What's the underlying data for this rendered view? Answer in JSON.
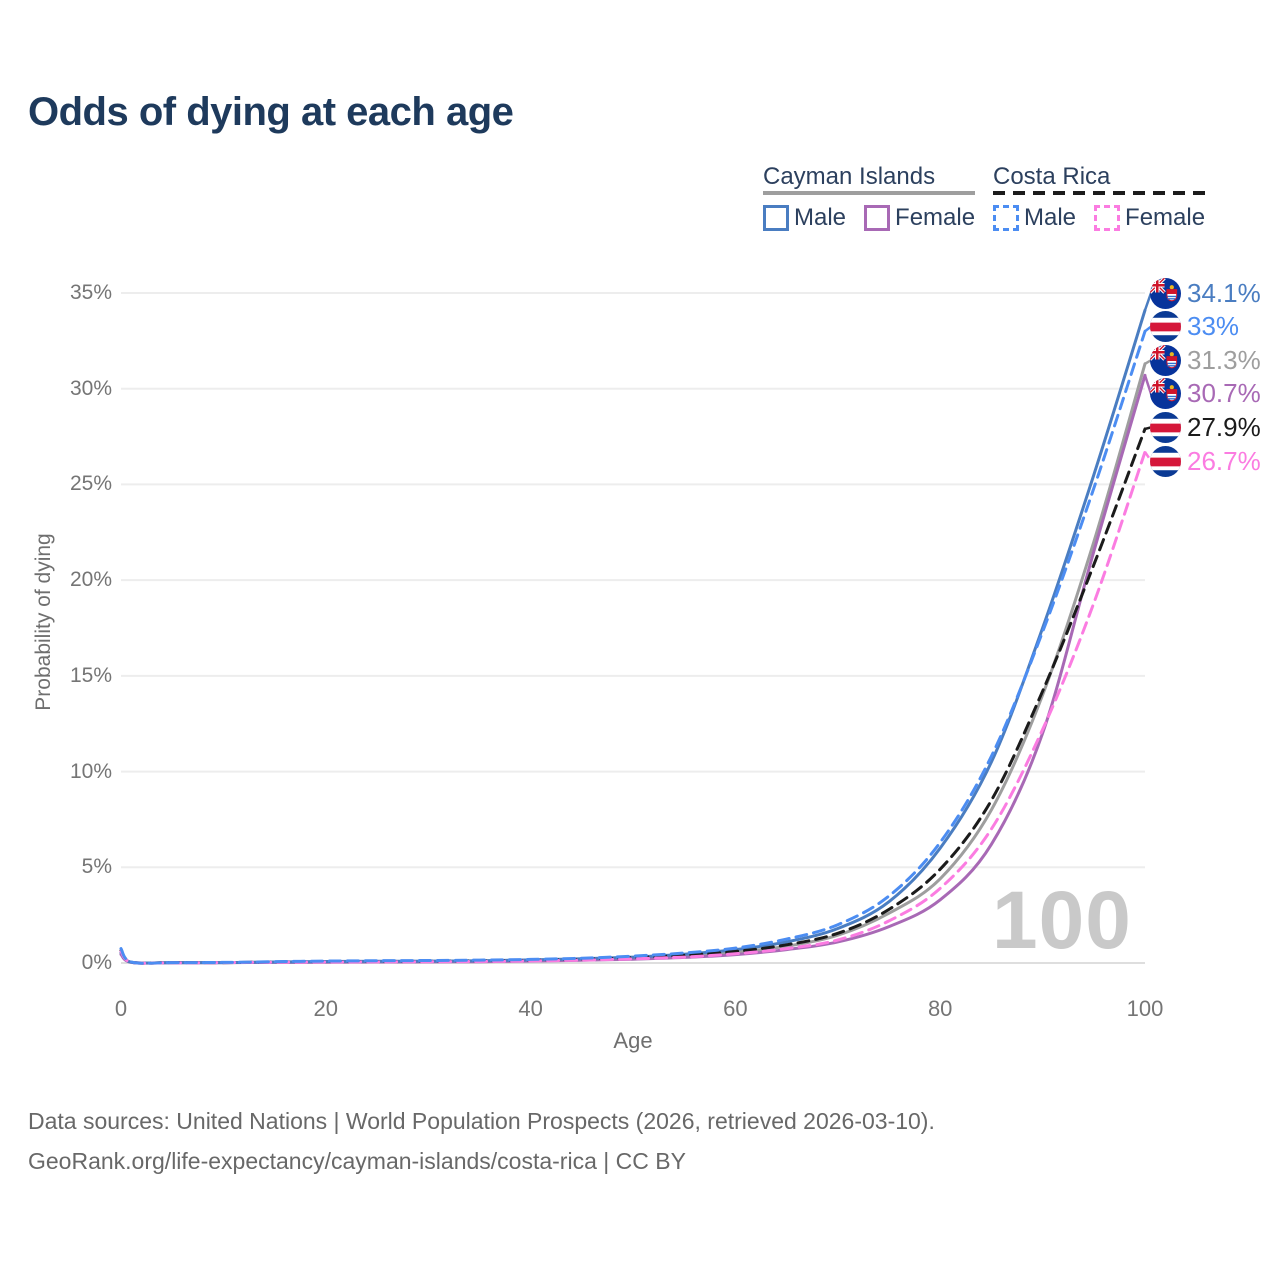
{
  "header": {
    "title": "Odds of dying at each age"
  },
  "legend": {
    "groups": [
      {
        "title": "Cayman Islands",
        "line_style": "solid",
        "line_color": "#9e9e9e",
        "items": [
          {
            "label": "Male",
            "color": "#4a7dc1",
            "dash": "solid"
          },
          {
            "label": "Female",
            "color": "#a869b5",
            "dash": "solid"
          }
        ]
      },
      {
        "title": "Costa Rica",
        "line_style": "dashed",
        "line_color": "#1b1b1b",
        "items": [
          {
            "label": "Male",
            "color": "#4c8df2",
            "dash": "dashed"
          },
          {
            "label": "Female",
            "color": "#fb7ce1",
            "dash": "dashed"
          }
        ]
      }
    ]
  },
  "chart_data": {
    "type": "line",
    "title": "Odds of dying at each age",
    "xlabel": "Age",
    "ylabel": "Probability of dying",
    "xlim": [
      0,
      100
    ],
    "ylim": [
      0,
      35
    ],
    "grid": "horizontal",
    "age_indicator": "100",
    "xticks": [
      {
        "v": 0,
        "label": "0"
      },
      {
        "v": 20,
        "label": "20"
      },
      {
        "v": 40,
        "label": "40"
      },
      {
        "v": 60,
        "label": "60"
      },
      {
        "v": 80,
        "label": "80"
      },
      {
        "v": 100,
        "label": "100"
      }
    ],
    "yticks": [
      {
        "v": 0,
        "label": "0%"
      },
      {
        "v": 5,
        "label": "5%"
      },
      {
        "v": 10,
        "label": "10%"
      },
      {
        "v": 15,
        "label": "15%"
      },
      {
        "v": 20,
        "label": "20%"
      },
      {
        "v": 25,
        "label": "25%"
      },
      {
        "v": 30,
        "label": "30%"
      },
      {
        "v": 35,
        "label": "35%"
      }
    ],
    "x": [
      0,
      1,
      5,
      10,
      15,
      20,
      25,
      30,
      35,
      40,
      45,
      50,
      55,
      60,
      65,
      70,
      75,
      80,
      85,
      90,
      95,
      100
    ],
    "series": [
      {
        "name": "Cayman Islands — All",
        "country": "Cayman Islands",
        "sex": "all",
        "color": "#9e9e9e",
        "dash": "solid",
        "flag": "cayman-islands",
        "end_label": "31.3%",
        "end_value": 31.3,
        "values": [
          0.5,
          0.04,
          0.02,
          0.02,
          0.04,
          0.06,
          0.07,
          0.08,
          0.09,
          0.13,
          0.18,
          0.25,
          0.37,
          0.56,
          0.88,
          1.45,
          2.6,
          4.4,
          8.0,
          14.0,
          22.0,
          31.3
        ]
      },
      {
        "name": "Cayman Islands — Female",
        "country": "Cayman Islands",
        "sex": "female",
        "color": "#a869b5",
        "dash": "solid",
        "flag": "cayman-islands",
        "end_label": "30.7%",
        "end_value": 30.7,
        "values": [
          0.45,
          0.03,
          0.01,
          0.02,
          0.03,
          0.04,
          0.05,
          0.06,
          0.07,
          0.1,
          0.14,
          0.2,
          0.29,
          0.44,
          0.7,
          1.1,
          1.9,
          3.3,
          6.2,
          12.0,
          21.5,
          30.7
        ]
      },
      {
        "name": "Cayman Islands — Male",
        "country": "Cayman Islands",
        "sex": "male",
        "color": "#4a7dc1",
        "dash": "solid",
        "flag": "cayman-islands",
        "end_label": "34.1%",
        "end_value": 34.1,
        "values": [
          0.55,
          0.04,
          0.02,
          0.02,
          0.05,
          0.08,
          0.09,
          0.1,
          0.12,
          0.16,
          0.22,
          0.31,
          0.46,
          0.7,
          1.1,
          1.8,
          3.2,
          6.0,
          10.5,
          17.5,
          25.5,
          34.1
        ]
      },
      {
        "name": "Costa Rica — All",
        "country": "Costa Rica",
        "sex": "all",
        "color": "#1b1b1b",
        "dash": "dashed",
        "flag": "costa-rica",
        "end_label": "27.9%",
        "end_value": 27.9,
        "values": [
          0.65,
          0.04,
          0.02,
          0.02,
          0.05,
          0.07,
          0.08,
          0.09,
          0.11,
          0.14,
          0.19,
          0.28,
          0.41,
          0.6,
          0.95,
          1.55,
          2.8,
          4.9,
          8.5,
          14.2,
          20.8,
          27.9
        ]
      },
      {
        "name": "Costa Rica — Female",
        "country": "Costa Rica",
        "sex": "female",
        "color": "#fb7ce1",
        "dash": "dashed",
        "flag": "costa-rica",
        "end_label": "26.7%",
        "end_value": 26.7,
        "values": [
          0.6,
          0.04,
          0.01,
          0.02,
          0.04,
          0.05,
          0.06,
          0.07,
          0.08,
          0.11,
          0.15,
          0.22,
          0.31,
          0.48,
          0.75,
          1.2,
          2.2,
          3.9,
          7.0,
          12.2,
          18.8,
          26.7
        ]
      },
      {
        "name": "Costa Rica — Male",
        "country": "Costa Rica",
        "sex": "male",
        "color": "#4c8df2",
        "dash": "dashed",
        "flag": "costa-rica",
        "end_label": "33%",
        "end_value": 33.0,
        "values": [
          0.75,
          0.05,
          0.02,
          0.03,
          0.07,
          0.1,
          0.12,
          0.13,
          0.15,
          0.19,
          0.25,
          0.36,
          0.52,
          0.78,
          1.25,
          2.0,
          3.5,
          6.3,
          10.8,
          17.3,
          24.8,
          33.0
        ]
      }
    ]
  },
  "footer": {
    "line1": "Data sources: United Nations | World Population Prospects (2026, retrieved 2026-03-10).",
    "line2": "GeoRank.org/life-expectancy/cayman-islands/costa-rica | CC BY"
  }
}
